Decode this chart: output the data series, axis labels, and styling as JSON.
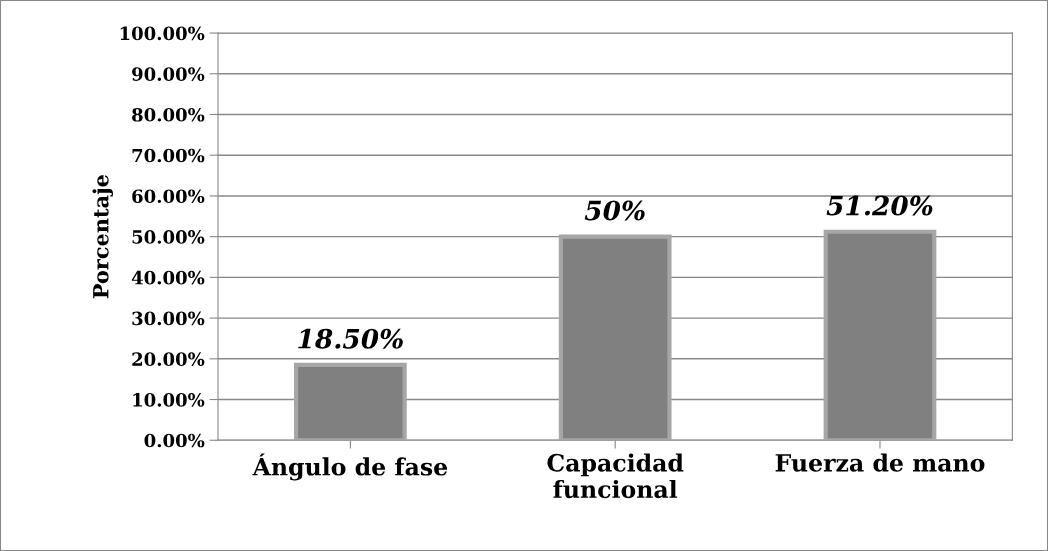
{
  "chart_data": {
    "type": "bar",
    "ylabel": "Porcentaje",
    "categories": [
      "Ángulo de fase",
      "Capacidad\nfuncional",
      "Fuerza de mano"
    ],
    "values": [
      18.5,
      50,
      51.2
    ],
    "color": "#808080",
    "value_labels": [
      "18.50%",
      "50%",
      "51.20%"
    ],
    "ylim": [
      0,
      100
    ],
    "yticks": [
      {
        "value": 0,
        "label": "0.00%"
      },
      {
        "value": 10,
        "label": "10.00%"
      },
      {
        "value": 20,
        "label": "20.00%"
      },
      {
        "value": 30,
        "label": "30.00%"
      },
      {
        "value": 40,
        "label": "40.00%"
      },
      {
        "value": 50,
        "label": "50.00%"
      },
      {
        "value": 60,
        "label": "60.00%"
      },
      {
        "value": 70,
        "label": "70.00%"
      },
      {
        "value": 80,
        "label": "80.00%"
      },
      {
        "value": 90,
        "label": "90.00%"
      },
      {
        "value": 100,
        "label": "100.00%"
      }
    ],
    "grid": "y"
  }
}
